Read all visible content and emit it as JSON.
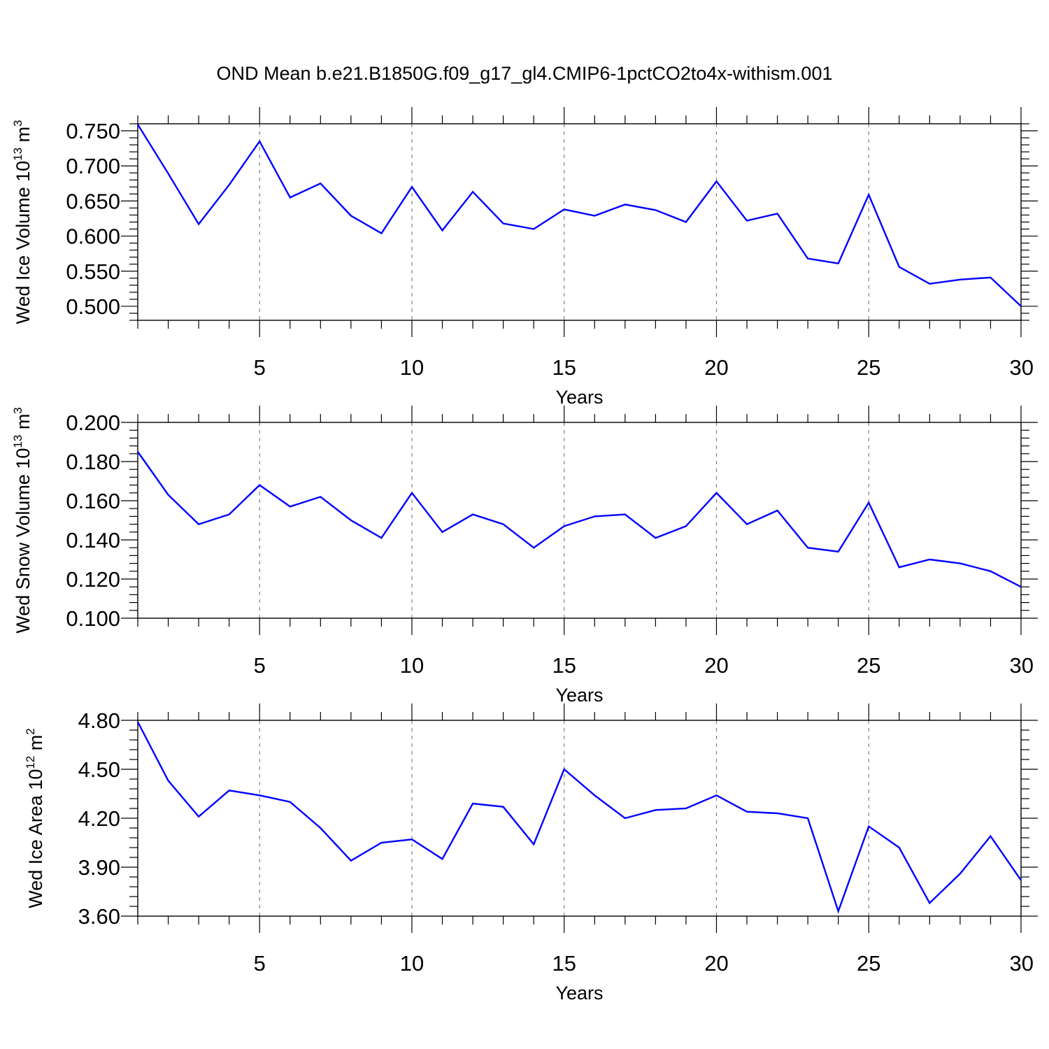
{
  "title": "OND Mean b.e21.B1850G.f09_g17_gl4.CMIP6-1pctCO2to4x-withism.001",
  "colors": {
    "series": "#0000ff",
    "axis": "#000000",
    "grid": "#808080"
  },
  "chart_data": [
    {
      "type": "line",
      "ylabel": {
        "text": "Wed Ice Volume 10",
        "sup": "13",
        "unit": " m",
        "unit_sup": "3"
      },
      "xlabel": "Years",
      "xlim": [
        1,
        30
      ],
      "ylim": [
        0.48,
        0.76
      ],
      "x_ticks": [
        5,
        10,
        15,
        20,
        25,
        30
      ],
      "y_ticks": [
        0.5,
        0.55,
        0.6,
        0.65,
        0.7,
        0.75
      ],
      "y_tick_labels": [
        "0.500",
        "0.550",
        "0.600",
        "0.650",
        "0.700",
        "0.750"
      ],
      "vertical_grid": true,
      "series": [
        {
          "x": [
            1,
            2,
            3,
            4,
            5,
            6,
            7,
            8,
            9,
            10,
            11,
            12,
            13,
            14,
            15,
            16,
            17,
            18,
            19,
            20,
            21,
            22,
            23,
            24,
            25,
            26,
            27,
            28,
            29,
            30
          ],
          "values": [
            0.759,
            0.689,
            0.617,
            0.673,
            0.735,
            0.655,
            0.675,
            0.629,
            0.604,
            0.67,
            0.608,
            0.663,
            0.618,
            0.61,
            0.638,
            0.629,
            0.645,
            0.637,
            0.62,
            0.678,
            0.622,
            0.632,
            0.568,
            0.561,
            0.659,
            0.556,
            0.532,
            0.538,
            0.541,
            0.5
          ]
        }
      ]
    },
    {
      "type": "line",
      "ylabel": {
        "text": "Wed Snow Volume 10",
        "sup": "13",
        "unit": " m",
        "unit_sup": "3"
      },
      "xlabel": "Years",
      "xlim": [
        1,
        30
      ],
      "ylim": [
        0.1,
        0.2
      ],
      "x_ticks": [
        5,
        10,
        15,
        20,
        25,
        30
      ],
      "y_ticks": [
        0.1,
        0.12,
        0.14,
        0.16,
        0.18,
        0.2
      ],
      "y_tick_labels": [
        "0.100",
        "0.120",
        "0.140",
        "0.160",
        "0.180",
        "0.200"
      ],
      "vertical_grid": true,
      "series": [
        {
          "x": [
            1,
            2,
            3,
            4,
            5,
            6,
            7,
            8,
            9,
            10,
            11,
            12,
            13,
            14,
            15,
            16,
            17,
            18,
            19,
            20,
            21,
            22,
            23,
            24,
            25,
            26,
            27,
            28,
            29,
            30
          ],
          "values": [
            0.185,
            0.163,
            0.148,
            0.153,
            0.168,
            0.157,
            0.162,
            0.15,
            0.141,
            0.164,
            0.144,
            0.153,
            0.148,
            0.136,
            0.147,
            0.152,
            0.153,
            0.141,
            0.147,
            0.164,
            0.148,
            0.155,
            0.136,
            0.134,
            0.159,
            0.126,
            0.13,
            0.128,
            0.124,
            0.116
          ]
        }
      ]
    },
    {
      "type": "line",
      "ylabel": {
        "text": "Wed Ice Area 10",
        "sup": "12",
        "unit": " m",
        "unit_sup": "2"
      },
      "xlabel": "Years",
      "xlim": [
        1,
        30
      ],
      "ylim": [
        3.6,
        4.8
      ],
      "x_ticks": [
        5,
        10,
        15,
        20,
        25,
        30
      ],
      "y_ticks": [
        3.6,
        3.9,
        4.2,
        4.5,
        4.8
      ],
      "y_tick_labels": [
        "3.60",
        "3.90",
        "4.20",
        "4.50",
        "4.80"
      ],
      "vertical_grid": true,
      "series": [
        {
          "x": [
            1,
            2,
            3,
            4,
            5,
            6,
            7,
            8,
            9,
            10,
            11,
            12,
            13,
            14,
            15,
            16,
            17,
            18,
            19,
            20,
            21,
            22,
            23,
            24,
            25,
            26,
            27,
            28,
            29,
            30
          ],
          "values": [
            4.79,
            4.43,
            4.21,
            4.37,
            4.34,
            4.3,
            4.14,
            3.94,
            4.05,
            4.07,
            3.95,
            4.29,
            4.27,
            4.04,
            4.5,
            4.34,
            4.2,
            4.25,
            4.26,
            4.34,
            4.24,
            4.23,
            4.2,
            3.63,
            4.15,
            4.02,
            3.68,
            3.86,
            4.09,
            3.82
          ]
        }
      ]
    }
  ]
}
